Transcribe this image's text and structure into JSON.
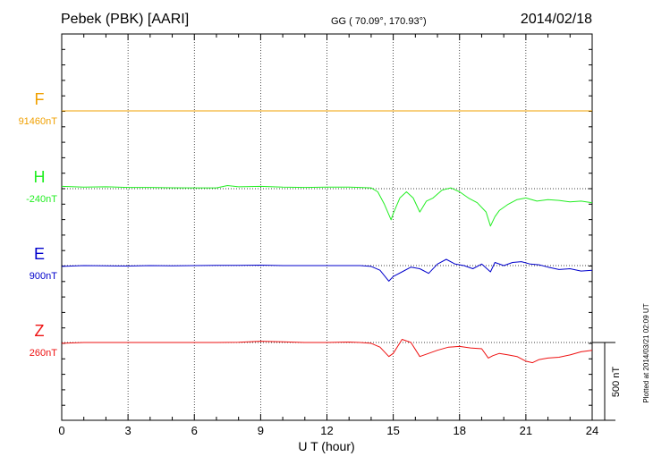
{
  "header": {
    "station": "Pebek (PBK)  [AARI]",
    "coords": "GG ( 70.09°, 170.93°)",
    "date": "2014/02/18"
  },
  "footer": {
    "plotted": "Plotted at 2014/03/21 02:09 UT"
  },
  "chart_data": {
    "type": "line",
    "xlabel": "U T (hour)",
    "xlim": [
      0,
      24
    ],
    "xticks": [
      "0",
      "3",
      "6",
      "9",
      "12",
      "15",
      "18",
      "21",
      "24"
    ],
    "scale_bar_label": "500 nT",
    "scale_bar_nT": 500,
    "series": [
      {
        "name": "F",
        "baseline_label": "91460nT",
        "color": "#f0a000",
        "x": [
          0,
          24
        ],
        "y": [
          0,
          0
        ]
      },
      {
        "name": "H",
        "baseline_label": "-240nT",
        "color": "#22ee22",
        "x": [
          0,
          1,
          2,
          3,
          4,
          5,
          6,
          7,
          7.5,
          8,
          9,
          10,
          11,
          12,
          13,
          13.5,
          14,
          14.3,
          14.6,
          14.9,
          15.0,
          15.3,
          15.6,
          15.9,
          16.2,
          16.5,
          16.8,
          17.2,
          17.6,
          18.0,
          18.4,
          18.8,
          19.2,
          19.4,
          19.6,
          19.8,
          20.2,
          20.6,
          21.0,
          21.5,
          22,
          22.5,
          23,
          23.5,
          24
        ],
        "y": [
          -15,
          -10,
          -12,
          -8,
          -8,
          -6,
          -5,
          -5,
          -20,
          -12,
          -15,
          -10,
          -8,
          -10,
          -10,
          -8,
          -5,
          20,
          100,
          200,
          160,
          60,
          20,
          60,
          150,
          80,
          60,
          10,
          -5,
          20,
          60,
          90,
          150,
          240,
          180,
          140,
          100,
          70,
          60,
          80,
          70,
          75,
          85,
          80,
          90
        ]
      },
      {
        "name": "E",
        "baseline_label": "900nT",
        "color": "#0000cc",
        "x": [
          0,
          1,
          2,
          3,
          4,
          5,
          6,
          7,
          8,
          9,
          10,
          11,
          12,
          13,
          13.5,
          14,
          14.4,
          14.8,
          15.0,
          15.4,
          15.8,
          16.2,
          16.6,
          17.0,
          17.4,
          17.8,
          18.2,
          18.6,
          19.0,
          19.4,
          19.6,
          20.0,
          20.4,
          20.8,
          21.2,
          21.6,
          22,
          22.5,
          23,
          23.5,
          24
        ],
        "y": [
          5,
          0,
          2,
          3,
          0,
          1,
          0,
          -2,
          -2,
          -3,
          0,
          0,
          0,
          0,
          0,
          5,
          30,
          100,
          70,
          40,
          10,
          20,
          50,
          -10,
          -40,
          -10,
          0,
          20,
          -10,
          40,
          -20,
          0,
          -20,
          -25,
          -10,
          -5,
          10,
          25,
          20,
          35,
          30
        ]
      },
      {
        "name": "Z",
        "baseline_label": "260nT",
        "color": "#ee1111",
        "x": [
          0,
          1,
          2,
          3,
          4,
          5,
          6,
          7,
          8,
          9,
          10,
          11,
          12,
          13,
          13.5,
          14,
          14.4,
          14.8,
          15.0,
          15.4,
          15.8,
          16.2,
          16.6,
          17.0,
          17.5,
          18.0,
          18.5,
          19.0,
          19.3,
          19.5,
          19.8,
          20.2,
          20.6,
          21.0,
          21.3,
          21.6,
          22,
          22.5,
          23,
          23.5,
          24
        ],
        "y": [
          5,
          0,
          0,
          0,
          0,
          0,
          0,
          0,
          -2,
          -8,
          -4,
          0,
          0,
          -3,
          0,
          5,
          30,
          90,
          70,
          -20,
          0,
          90,
          70,
          50,
          30,
          25,
          35,
          40,
          100,
          85,
          70,
          80,
          90,
          120,
          130,
          110,
          100,
          95,
          80,
          60,
          50
        ]
      }
    ]
  }
}
